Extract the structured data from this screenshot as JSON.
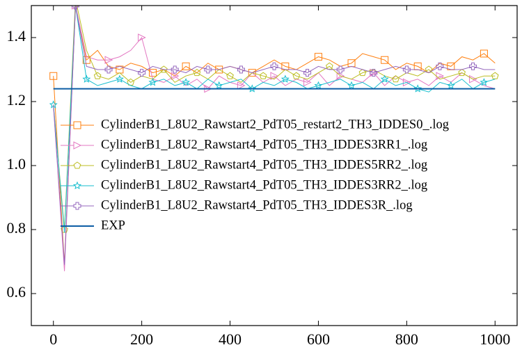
{
  "chart_data": {
    "type": "line",
    "x": [
      0,
      25,
      50,
      75,
      100,
      125,
      150,
      175,
      200,
      225,
      250,
      275,
      300,
      325,
      350,
      375,
      400,
      425,
      450,
      475,
      500,
      525,
      550,
      575,
      600,
      625,
      650,
      675,
      700,
      725,
      750,
      775,
      800,
      825,
      850,
      875,
      900,
      925,
      950,
      975,
      1000
    ],
    "series": [
      {
        "name": "CylinderB1_L8U2_Rawstart2_PdT05_restart2_TH3_IDDES0_.log",
        "color": "#ff7f0e",
        "marker": "square",
        "values": [
          1.28,
          0.69,
          1.5,
          1.33,
          1.36,
          1.31,
          1.3,
          1.32,
          1.31,
          1.29,
          1.3,
          1.28,
          1.31,
          1.29,
          1.32,
          1.3,
          1.31,
          1.3,
          1.29,
          1.31,
          1.33,
          1.31,
          1.3,
          1.32,
          1.34,
          1.33,
          1.31,
          1.32,
          1.35,
          1.34,
          1.33,
          1.3,
          1.32,
          1.31,
          1.29,
          1.32,
          1.31,
          1.34,
          1.33,
          1.35,
          1.32
        ]
      },
      {
        "name": "CylinderB1_L8U2_Rawstart4_PdT05_TH3_IDDES3RR1_.log",
        "color": "#e377c2",
        "marker": "triangle-right",
        "values": [
          1.19,
          0.67,
          1.5,
          1.34,
          1.33,
          1.33,
          1.34,
          1.36,
          1.4,
          1.27,
          1.26,
          1.28,
          1.25,
          1.27,
          1.24,
          1.28,
          1.26,
          1.25,
          1.29,
          1.26,
          1.28,
          1.25,
          1.27,
          1.26,
          1.29,
          1.25,
          1.28,
          1.27,
          1.26,
          1.29,
          1.25,
          1.28,
          1.26,
          1.27,
          1.25,
          1.28,
          1.26,
          1.29,
          1.27,
          1.25,
          1.24
        ]
      },
      {
        "name": "CylinderB1_L8U2_Rawstart4_PdT05_TH3_IDDES5RR2_.log",
        "color": "#bcbd22",
        "marker": "pentagon",
        "values": [
          1.19,
          0.8,
          1.52,
          1.36,
          1.28,
          1.27,
          1.29,
          1.26,
          1.28,
          1.27,
          1.3,
          1.26,
          1.28,
          1.29,
          1.27,
          1.3,
          1.28,
          1.26,
          1.29,
          1.28,
          1.27,
          1.3,
          1.28,
          1.27,
          1.29,
          1.31,
          1.28,
          1.27,
          1.29,
          1.3,
          1.28,
          1.27,
          1.29,
          1.28,
          1.3,
          1.27,
          1.28,
          1.29,
          1.27,
          1.28,
          1.28
        ]
      },
      {
        "name": "CylinderB1_L8U2_Rawstart4_PdT05_TH3_IDDES3RR2_.log",
        "color": "#17becf",
        "marker": "star",
        "values": [
          1.19,
          0.79,
          1.5,
          1.27,
          1.25,
          1.26,
          1.27,
          1.25,
          1.24,
          1.26,
          1.27,
          1.25,
          1.26,
          1.24,
          1.27,
          1.25,
          1.26,
          1.27,
          1.24,
          1.26,
          1.25,
          1.27,
          1.26,
          1.24,
          1.25,
          1.26,
          1.27,
          1.25,
          1.26,
          1.24,
          1.27,
          1.25,
          1.26,
          1.24,
          1.23,
          1.26,
          1.25,
          1.27,
          1.24,
          1.26,
          1.27
        ]
      },
      {
        "name": "CylinderB1_L8U2_Rawstart4_PdT05_TH3_IDDES3R_.log",
        "color": "#9467bd",
        "marker": "plus",
        "values": [
          1.19,
          0.69,
          1.5,
          1.31,
          1.3,
          1.3,
          1.31,
          1.3,
          1.29,
          1.31,
          1.3,
          1.3,
          1.29,
          1.31,
          1.3,
          1.3,
          1.31,
          1.3,
          1.29,
          1.3,
          1.31,
          1.3,
          1.3,
          1.29,
          1.31,
          1.3,
          1.3,
          1.31,
          1.3,
          1.29,
          1.3,
          1.31,
          1.3,
          1.3,
          1.29,
          1.31,
          1.3,
          1.3,
          1.31,
          1.3,
          1.3
        ]
      },
      {
        "name": "EXP",
        "color": "#0c5da5",
        "x": [
          0,
          1000
        ],
        "values": [
          1.24,
          1.24
        ]
      }
    ],
    "xlim": [
      -50,
      1050
    ],
    "ylim": [
      0.5,
      1.5
    ],
    "xticks": [
      0,
      200,
      400,
      600,
      800,
      1000
    ],
    "yticks": [
      0.6,
      0.8,
      {
        "value": 1,
        "label": "1.0"
      },
      1.2,
      1.4
    ],
    "legend": "center left"
  }
}
